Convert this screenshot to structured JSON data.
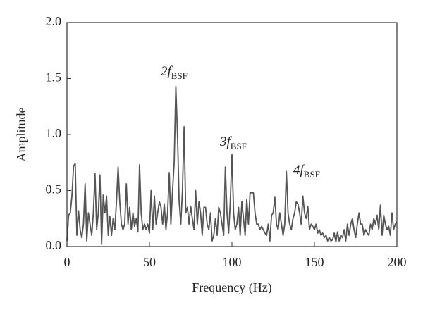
{
  "chart_data": {
    "type": "line",
    "xlabel": "Frequency (Hz)",
    "ylabel": "Amplitude",
    "annotations": [
      {
        "prefix": "2",
        "symbol": "f",
        "subscript": "BSF"
      },
      {
        "prefix": "3",
        "symbol": "f",
        "subscript": "BSF"
      },
      {
        "prefix": "4",
        "symbol": "f",
        "subscript": "BSF"
      }
    ],
    "x": [
      0,
      1,
      2,
      3,
      4,
      5,
      6,
      7,
      8,
      9,
      10,
      11,
      12,
      13,
      14,
      15,
      16,
      17,
      18,
      19,
      20,
      21,
      22,
      23,
      24,
      25,
      26,
      27,
      28,
      29,
      30,
      31,
      32,
      33,
      34,
      35,
      36,
      37,
      38,
      39,
      40,
      41,
      42,
      43,
      44,
      45,
      46,
      47,
      48,
      49,
      50,
      51,
      52,
      53,
      54,
      55,
      56,
      57,
      58,
      59,
      60,
      61,
      62,
      63,
      64,
      65,
      66,
      67,
      68,
      69,
      70,
      71,
      72,
      73,
      74,
      75,
      76,
      77,
      78,
      79,
      80,
      81,
      82,
      83,
      84,
      85,
      86,
      87,
      88,
      89,
      90,
      91,
      92,
      93,
      94,
      95,
      96,
      97,
      98,
      99,
      100,
      101,
      102,
      103,
      104,
      105,
      106,
      107,
      108,
      109,
      110,
      111,
      112,
      113,
      114,
      115,
      116,
      117,
      118,
      119,
      120,
      121,
      122,
      123,
      124,
      125,
      126,
      127,
      128,
      129,
      130,
      131,
      132,
      133,
      134,
      135,
      136,
      137,
      138,
      139,
      140,
      141,
      142,
      143,
      144,
      145,
      146,
      147,
      148,
      149,
      150,
      151,
      152,
      153,
      154,
      155,
      156,
      157,
      158,
      159,
      160,
      161,
      162,
      163,
      164,
      165,
      166,
      167,
      168,
      169,
      170,
      171,
      172,
      173,
      174,
      175,
      176,
      177,
      178,
      179,
      180,
      181,
      182,
      183,
      184,
      185,
      186,
      187,
      188,
      189,
      190,
      191,
      192,
      193,
      194,
      195,
      196,
      197,
      198,
      199,
      200
    ],
    "series": [
      {
        "color": "#555555",
        "values": [
          0.05,
          0.28,
          0.3,
          0.45,
          0.72,
          0.74,
          0.1,
          0.32,
          0.15,
          0.08,
          0.2,
          0.56,
          0.05,
          0.3,
          0.2,
          0.1,
          0.3,
          0.65,
          0.15,
          0.3,
          0.64,
          0.02,
          0.46,
          0.3,
          0.45,
          0.1,
          0.27,
          0.1,
          0.25,
          0.15,
          0.4,
          0.71,
          0.4,
          0.2,
          0.15,
          0.2,
          0.56,
          0.2,
          0.35,
          0.15,
          0.3,
          0.18,
          0.25,
          0.13,
          0.73,
          0.3,
          0.15,
          0.2,
          0.15,
          0.2,
          0.12,
          0.5,
          0.15,
          0.45,
          0.2,
          0.3,
          0.4,
          0.35,
          0.2,
          0.38,
          0.15,
          0.3,
          0.66,
          0.2,
          0.5,
          0.75,
          1.43,
          1.0,
          0.4,
          0.2,
          0.5,
          1.07,
          0.3,
          0.35,
          0.2,
          0.36,
          0.25,
          0.15,
          0.5,
          0.2,
          0.4,
          0.3,
          0.1,
          0.35,
          0.35,
          0.2,
          0.15,
          0.3,
          0.05,
          0.1,
          0.25,
          0.1,
          0.35,
          0.3,
          0.2,
          0.1,
          0.71,
          0.3,
          0.12,
          0.4,
          0.82,
          0.3,
          0.15,
          0.2,
          0.35,
          0.1,
          0.4,
          0.25,
          0.1,
          0.42,
          0.2,
          0.48,
          0.48,
          0.48,
          0.3,
          0.2,
          0.2,
          0.15,
          0.18,
          0.15,
          0.12,
          0.1,
          0.2,
          0.05,
          0.28,
          0.3,
          0.44,
          0.2,
          0.15,
          0.3,
          0.2,
          0.1,
          0.2,
          0.67,
          0.3,
          0.2,
          0.15,
          0.25,
          0.3,
          0.4,
          0.38,
          0.3,
          0.2,
          0.45,
          0.3,
          0.25,
          0.36,
          0.15,
          0.2,
          0.18,
          0.15,
          0.2,
          0.12,
          0.15,
          0.1,
          0.12,
          0.08,
          0.1,
          0.05,
          0.08,
          0.05,
          0.06,
          0.12,
          0.04,
          0.13,
          0.05,
          0.1,
          0.08,
          0.15,
          0.05,
          0.2,
          0.1,
          0.2,
          0.25,
          0.15,
          0.08,
          0.2,
          0.3,
          0.2,
          0.2,
          0.1,
          0.15,
          0.12,
          0.1,
          0.2,
          0.15,
          0.25,
          0.2,
          0.28,
          0.15,
          0.37,
          0.1,
          0.28,
          0.2,
          0.15,
          0.18,
          0.1,
          0.3,
          0.15,
          0.2,
          0.22
        ]
      }
    ],
    "xlim": [
      0,
      200
    ],
    "xticks": [
      0,
      50,
      100,
      150,
      200
    ],
    "ylim": [
      0,
      2
    ],
    "yticks": [
      {
        "value": 0,
        "label": "0.0"
      },
      {
        "value": 0.5,
        "label": "0.5"
      },
      {
        "value": 1,
        "label": "1.0"
      },
      {
        "value": 1.5,
        "label": "1.5"
      },
      {
        "value": 2,
        "label": "2.0"
      }
    ],
    "grid": false
  }
}
